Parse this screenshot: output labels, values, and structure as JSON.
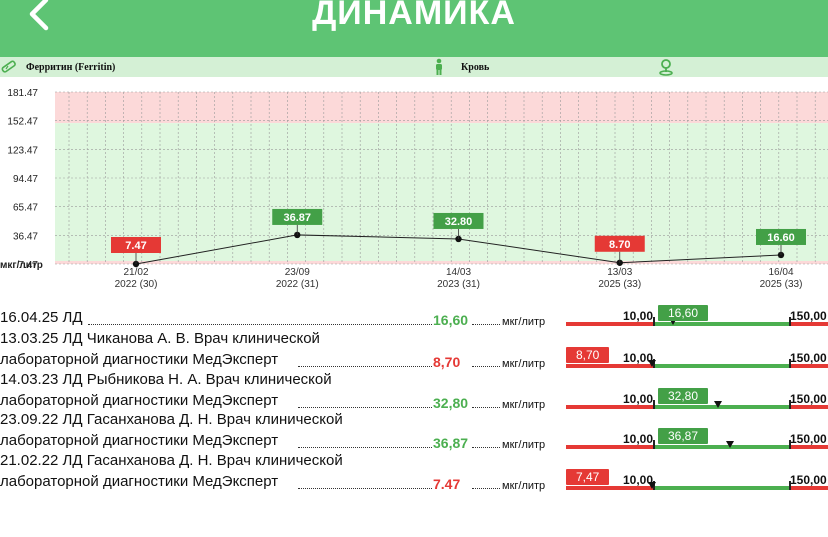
{
  "header": {
    "title": "ДИНАМИКА"
  },
  "info_bar": {
    "analyte": "Ферритин (Ferritin)",
    "material": "Кровь"
  },
  "colors": {
    "header_bg": "#5ec474",
    "normal_zone": "#dff7df",
    "high_zone": "#fcd9d9",
    "badge_ok": "#43a047",
    "badge_bad": "#e53935"
  },
  "chart_data": {
    "type": "line",
    "y_ticks": [
      "181.47",
      "152.47",
      "123.47",
      "94.47",
      "65.47",
      "36.47",
      "7.47"
    ],
    "ylim": [
      7.47,
      181.47
    ],
    "ylabel": "мкг/литр",
    "normal_range": [
      10.0,
      150.0
    ],
    "points": [
      {
        "date": "21/02",
        "year": "2022 (30)",
        "value": 7.47,
        "label": "7.47",
        "status": "bad"
      },
      {
        "date": "23/09",
        "year": "2022 (31)",
        "value": 36.87,
        "label": "36.87",
        "status": "ok"
      },
      {
        "date": "14/03",
        "year": "2023 (31)",
        "value": 32.8,
        "label": "32.80",
        "status": "ok"
      },
      {
        "date": "13/03",
        "year": "2025 (33)",
        "value": 8.7,
        "label": "8.70",
        "status": "bad"
      },
      {
        "date": "16/04",
        "year": "2025 (33)",
        "value": 16.6,
        "label": "16.60",
        "status": "ok"
      }
    ]
  },
  "results": [
    {
      "line1": "16.04.25 ЛД",
      "line2": "",
      "value": "16,60",
      "status": "ok",
      "unit": "мкг/литр",
      "low": "10,00",
      "high": "150,00",
      "badge": "16,60",
      "position": 16.6
    },
    {
      "line1": "13.03.25 ЛД Чиканова А. В. Врач клинической",
      "line2": "лабораторной диагностики МедЭксперт",
      "value": "8,70",
      "status": "bad",
      "unit": "мкг/литр",
      "low": "10,00",
      "high": "150,00",
      "badge": "8,70",
      "position": 8.7
    },
    {
      "line1": "14.03.23 ЛД Рыбникова Н. А. Врач клинической",
      "line2": "лабораторной диагностики МедЭксперт",
      "value": "32,80",
      "status": "ok",
      "unit": "мкг/литр",
      "low": "10,00",
      "high": "150,00",
      "badge": "32,80",
      "position": 32.8
    },
    {
      "line1": "23.09.22 ЛД Гасанханова Д. Н. Врач клинической",
      "line2": "лабораторной диагностики МедЭксперт",
      "value": "36,87",
      "status": "ok",
      "unit": "мкг/литр",
      "low": "10,00",
      "high": "150,00",
      "badge": "36,87",
      "position": 36.87
    },
    {
      "line1": "21.02.22 ЛД Гасанханова Д. Н. Врач клинической",
      "line2": "лабораторной диагностики МедЭксперт",
      "value": "7.47",
      "status": "bad",
      "unit": "мкг/литр",
      "low": "10,00",
      "high": "150,00",
      "badge": "7,47",
      "position": 7.47
    }
  ]
}
